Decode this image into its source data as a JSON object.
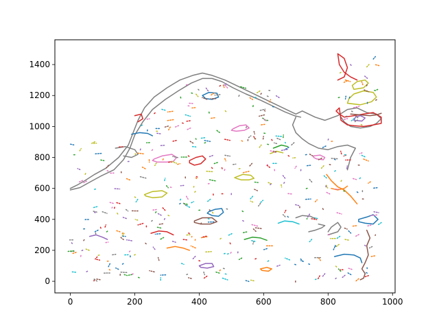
{
  "chart_data": {
    "type": "line",
    "title": "",
    "xlabel": "",
    "ylabel": "",
    "xlim": [
      -48,
      1008
    ],
    "ylim": [
      -75,
      1560
    ],
    "x_ticks": [
      0,
      200,
      400,
      600,
      800,
      1000
    ],
    "y_ticks": [
      0,
      200,
      400,
      600,
      800,
      1000,
      1200,
      1400
    ],
    "grid": false,
    "legend": "none",
    "palette": [
      "#1f77b4",
      "#ff7f0e",
      "#2ca02c",
      "#d62728",
      "#9467bd",
      "#8c564b",
      "#e377c2",
      "#7f7f7f",
      "#bcbd22",
      "#17becf"
    ],
    "series": [
      {
        "color": "#7f7f7f",
        "closed": false,
        "x": [
          0,
          20,
          45,
          75,
          110,
          150,
          180,
          195,
          210,
          230,
          260,
          300,
          340,
          380,
          410,
          440,
          480,
          520,
          560,
          600,
          640,
          680,
          700,
          720,
          740,
          760,
          790,
          830,
          860,
          890,
          920,
          950,
          965,
          950,
          930,
          900,
          870,
          850,
          840
        ],
        "y": [
          600,
          620,
          650,
          690,
          730,
          800,
          880,
          960,
          1040,
          1120,
          1190,
          1250,
          1300,
          1330,
          1345,
          1330,
          1300,
          1260,
          1220,
          1180,
          1140,
          1100,
          1080,
          1100,
          1080,
          1060,
          1040,
          1070,
          1110,
          1120,
          1090,
          1080,
          1050,
          1020,
          1000,
          990,
          1000,
          1030,
          1060
        ]
      },
      {
        "color": "#7f7f7f",
        "closed": false,
        "x": [
          0,
          30,
          60,
          95,
          135,
          165,
          185,
          200,
          225,
          255,
          295,
          335,
          375,
          410,
          440,
          470,
          505,
          545,
          590,
          630,
          665,
          695,
          715
        ],
        "y": [
          590,
          605,
          640,
          680,
          720,
          785,
          860,
          945,
          1030,
          1110,
          1175,
          1230,
          1280,
          1310,
          1310,
          1290,
          1250,
          1210,
          1170,
          1130,
          1095,
          1070,
          1060
        ]
      },
      {
        "color": "#7f7f7f",
        "closed": false,
        "x": [
          700,
          690,
          700,
          720,
          740,
          770,
          800,
          830,
          860,
          885,
          870,
          860
        ],
        "y": [
          1060,
          1010,
          960,
          920,
          890,
          860,
          850,
          870,
          880,
          860,
          800,
          720
        ]
      },
      {
        "color": "#7f7f7f",
        "closed": false,
        "x": [
          140,
          170,
          200,
          210,
          190,
          165
        ],
        "y": [
          860,
          870,
          850,
          820,
          800,
          810
        ]
      },
      {
        "color": "#7f7f7f",
        "closed": false,
        "x": [
          800,
          830,
          840,
          830,
          810,
          800
        ],
        "y": [
          300,
          320,
          350,
          380,
          350,
          320
        ]
      },
      {
        "color": "#7f7f7f",
        "closed": false,
        "x": [
          740,
          760,
          780,
          790,
          770
        ],
        "y": [
          320,
          330,
          345,
          360,
          370
        ]
      },
      {
        "color": "#d62728",
        "closed": true,
        "x": [
          840,
          860,
          880,
          910,
          940,
          965,
          965,
          940,
          910,
          880,
          850,
          835,
          825,
          835
        ],
        "y": [
          1040,
          1010,
          1005,
          1000,
          1010,
          1020,
          1060,
          1090,
          1080,
          1070,
          1060,
          1080,
          1100,
          1120
        ]
      },
      {
        "color": "#d62728",
        "closed": false,
        "x": [
          830,
          850,
          860,
          850,
          830,
          835,
          850,
          870,
          890
        ],
        "y": [
          1300,
          1320,
          1380,
          1440,
          1470,
          1400,
          1350,
          1320,
          1300
        ]
      },
      {
        "color": "#bcbd22",
        "closed": true,
        "x": [
          860,
          900,
          935,
          950,
          940,
          910,
          880,
          865
        ],
        "y": [
          1150,
          1140,
          1160,
          1190,
          1220,
          1230,
          1210,
          1180
        ]
      },
      {
        "color": "#bcbd22",
        "closed": true,
        "x": [
          880,
          910,
          925,
          915,
          890,
          875
        ],
        "y": [
          1240,
          1250,
          1280,
          1300,
          1290,
          1265
        ]
      },
      {
        "color": "#8c564b",
        "closed": false,
        "x": [
          870,
          900,
          930,
          950,
          965
        ],
        "y": [
          1080,
          1075,
          1070,
          1075,
          1085
        ]
      },
      {
        "color": "#9467bd",
        "closed": true,
        "x": [
          880,
          905,
          915,
          900,
          885
        ],
        "y": [
          1040,
          1035,
          1055,
          1070,
          1060
        ]
      },
      {
        "color": "#e377c2",
        "closed": true,
        "x": [
          260,
          285,
          315,
          330,
          320,
          300,
          270,
          255
        ],
        "y": [
          790,
          810,
          820,
          800,
          775,
          770,
          770,
          780
        ]
      },
      {
        "color": "#d62728",
        "closed": true,
        "x": [
          370,
          390,
          410,
          420,
          405,
          385,
          370
        ],
        "y": [
          780,
          800,
          810,
          790,
          760,
          750,
          765
        ]
      },
      {
        "color": "#bcbd22",
        "closed": true,
        "x": [
          230,
          255,
          285,
          300,
          285,
          255,
          235
        ],
        "y": [
          560,
          580,
          585,
          570,
          545,
          540,
          550
        ]
      },
      {
        "color": "#bcbd22",
        "closed": true,
        "x": [
          510,
          535,
          560,
          570,
          555,
          530,
          515
        ],
        "y": [
          670,
          690,
          685,
          665,
          655,
          655,
          665
        ]
      },
      {
        "color": "#e377c2",
        "closed": true,
        "x": [
          505,
          525,
          545,
          555,
          540,
          515,
          500
        ],
        "y": [
          985,
          1005,
          1010,
          990,
          975,
          970,
          975
        ]
      },
      {
        "color": "#1f77b4",
        "closed": true,
        "x": [
          430,
          450,
          470,
          475,
          460,
          440,
          425
        ],
        "y": [
          450,
          465,
          470,
          445,
          420,
          425,
          440
        ]
      },
      {
        "color": "#1f77b4",
        "closed": true,
        "x": [
          410,
          430,
          455,
          460,
          440,
          420
        ],
        "y": [
          1200,
          1220,
          1215,
          1190,
          1175,
          1180
        ]
      },
      {
        "color": "#8c564b",
        "closed": true,
        "x": [
          385,
          410,
          440,
          455,
          435,
          405,
          385
        ],
        "y": [
          390,
          410,
          410,
          385,
          370,
          370,
          380
        ]
      },
      {
        "color": "#ff7f0e",
        "closed": false,
        "x": [
          795,
          810,
          830,
          850,
          870,
          890
        ],
        "y": [
          690,
          650,
          610,
          590,
          550,
          500
        ]
      },
      {
        "color": "#ff7f0e",
        "closed": false,
        "x": [
          810,
          830,
          850,
          860
        ],
        "y": [
          600,
          590,
          600,
          615
        ]
      },
      {
        "color": "#e377c2",
        "closed": true,
        "x": [
          755,
          775,
          790,
          785,
          765,
          755
        ],
        "y": [
          810,
          815,
          800,
          785,
          790,
          800
        ]
      },
      {
        "color": "#1f77b4",
        "closed": true,
        "x": [
          895,
          920,
          940,
          955,
          940,
          915,
          895
        ],
        "y": [
          400,
          415,
          430,
          400,
          370,
          375,
          385
        ]
      },
      {
        "color": "#8c564b",
        "closed": false,
        "x": [
          920,
          930,
          920,
          925,
          915,
          905,
          915,
          910,
          900
        ],
        "y": [
          330,
          280,
          230,
          170,
          120,
          80,
          50,
          20,
          10
        ]
      },
      {
        "color": "#1f77b4",
        "closed": false,
        "x": [
          820,
          850,
          880,
          900,
          905
        ],
        "y": [
          160,
          175,
          170,
          150,
          120
        ]
      },
      {
        "color": "#9467bd",
        "closed": true,
        "x": [
          400,
          420,
          440,
          445,
          425,
          405
        ],
        "y": [
          100,
          115,
          115,
          95,
          85,
          90
        ]
      },
      {
        "color": "#ff7f0e",
        "closed": true,
        "x": [
          590,
          610,
          625,
          615,
          595
        ],
        "y": [
          80,
          90,
          80,
          65,
          70
        ]
      },
      {
        "color": "#1f77b4",
        "closed": false,
        "x": [
          190,
          215,
          240,
          255
        ],
        "y": [
          950,
          960,
          955,
          940
        ]
      },
      {
        "color": "#d62728",
        "closed": false,
        "x": [
          200,
          220,
          225,
          210
        ],
        "y": [
          1070,
          1080,
          1050,
          1030
        ]
      },
      {
        "color": "#2ca02c",
        "closed": false,
        "x": [
          630,
          655,
          675
        ],
        "y": [
          860,
          880,
          870
        ]
      },
      {
        "color": "#bcbd22",
        "closed": false,
        "x": [
          620,
          640,
          660
        ],
        "y": [
          825,
          840,
          830
        ]
      },
      {
        "color": "#ff7f0e",
        "closed": false,
        "x": [
          300,
          325,
          350,
          370
        ],
        "y": [
          215,
          225,
          215,
          200
        ]
      },
      {
        "color": "#d62728",
        "closed": false,
        "x": [
          250,
          275,
          300,
          320
        ],
        "y": [
          310,
          325,
          320,
          300
        ]
      },
      {
        "color": "#9467bd",
        "closed": false,
        "x": [
          60,
          80,
          100,
          115
        ],
        "y": [
          290,
          300,
          285,
          270
        ]
      },
      {
        "color": "#2ca02c",
        "closed": false,
        "x": [
          540,
          565,
          590,
          610
        ],
        "y": [
          270,
          285,
          280,
          265
        ]
      },
      {
        "color": "#17becf",
        "closed": false,
        "x": [
          645,
          665,
          690,
          710
        ],
        "y": [
          375,
          390,
          385,
          370
        ]
      },
      {
        "color": "#7f7f7f",
        "closed": false,
        "x": [
          700,
          720,
          745,
          760
        ],
        "y": [
          410,
          425,
          420,
          405
        ]
      }
    ]
  }
}
